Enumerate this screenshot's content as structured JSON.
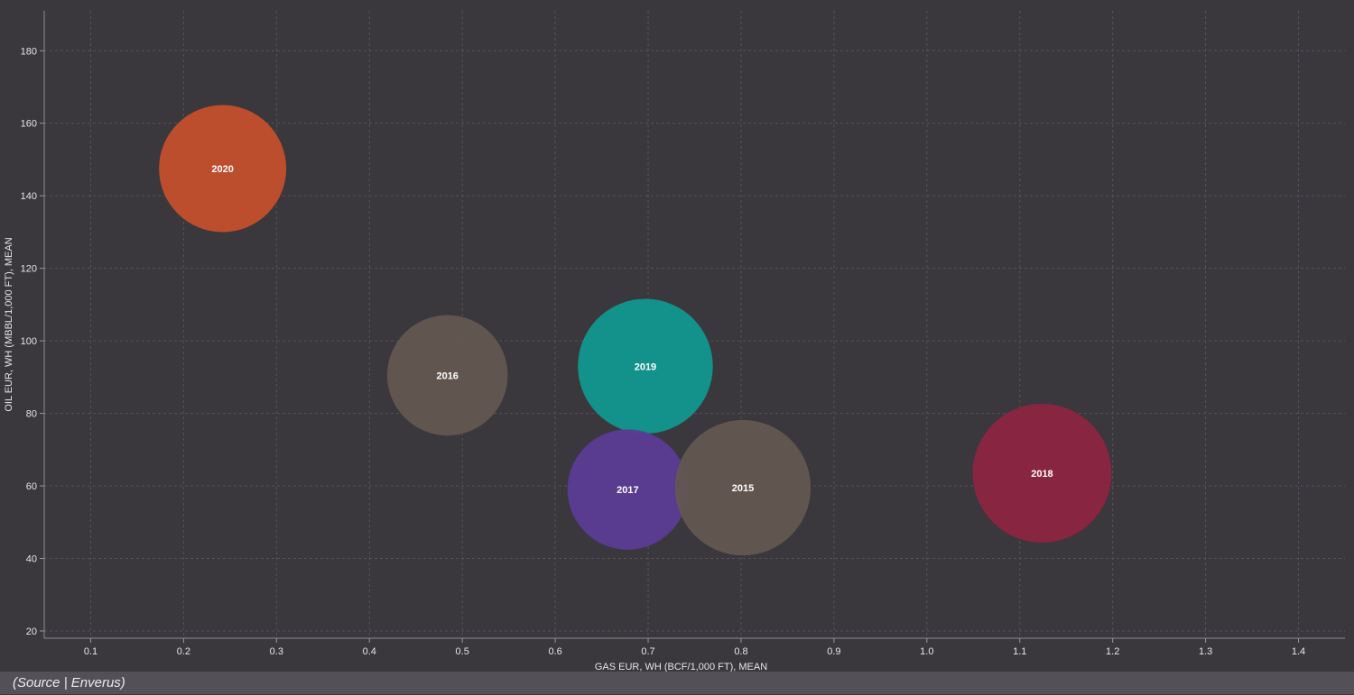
{
  "chart_data": {
    "type": "scatter",
    "title": "",
    "xlabel": "GAS EUR, WH (BCF/1,000 FT), MEAN",
    "ylabel": "OIL EUR, WH (MBBL/1,000 FT), MEAN",
    "xlim": [
      0.05,
      1.45
    ],
    "ylim": [
      18,
      191
    ],
    "x_ticks": [
      0.1,
      0.2,
      0.3,
      0.4,
      0.5,
      0.6,
      0.7,
      0.8,
      0.9,
      1.0,
      1.1,
      1.2,
      1.3,
      1.4
    ],
    "x_tick_labels": [
      "0.1",
      "0.2",
      "0.3",
      "0.4",
      "0.5",
      "0.6",
      "0.7",
      "0.8",
      "0.9",
      "1.0",
      "1.1",
      "1.2",
      "1.3",
      "1.4"
    ],
    "y_ticks": [
      20,
      40,
      60,
      80,
      100,
      120,
      140,
      160,
      180
    ],
    "y_tick_labels": [
      "20",
      "40",
      "60",
      "80",
      "100",
      "120",
      "140",
      "160",
      "180"
    ],
    "grid": true,
    "series": [
      {
        "label": "2020",
        "x": 0.242,
        "y": 147.5,
        "size": 0.88,
        "color": "#c64f2c"
      },
      {
        "label": "2016",
        "x": 0.484,
        "y": 90.5,
        "size": 0.79,
        "color": "#645752"
      },
      {
        "label": "2019",
        "x": 0.697,
        "y": 93.0,
        "size": 0.99,
        "color": "#109891"
      },
      {
        "label": "2017",
        "x": 0.678,
        "y": 59.0,
        "size": 0.79,
        "color": "#5b3b96"
      },
      {
        "label": "2015",
        "x": 0.802,
        "y": 59.5,
        "size": 1.0,
        "color": "#645752"
      },
      {
        "label": "2018",
        "x": 1.124,
        "y": 63.5,
        "size": 1.05,
        "color": "#8e2442"
      }
    ]
  },
  "source": "(Source | Enverus)"
}
